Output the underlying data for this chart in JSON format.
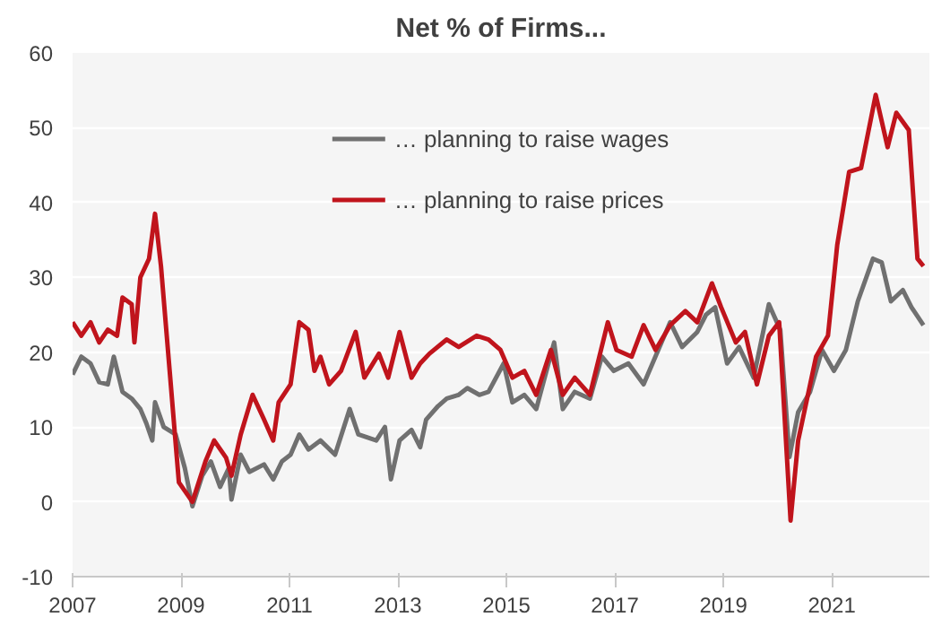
{
  "chart_data": {
    "type": "line",
    "title": "Net % of Firms...",
    "xlim": [
      2007,
      2022.8
    ],
    "xticks": [
      2007,
      2009,
      2011,
      2013,
      2015,
      2017,
      2019,
      2021
    ],
    "ylim": [
      -10,
      60
    ],
    "yticks": [
      -10,
      0,
      10,
      20,
      30,
      40,
      50,
      60
    ],
    "grid": "y",
    "legend": "top",
    "marker": "none",
    "line_style": "solid",
    "series": [
      {
        "name": "… planning to raise wages",
        "color": "#707070",
        "x": [
          2007.0,
          2007.16,
          2007.33,
          2007.49,
          2007.65,
          2007.76,
          2007.92,
          2008.09,
          2008.25,
          2008.36,
          2008.47,
          2008.52,
          2008.68,
          2008.9,
          2009.07,
          2009.21,
          2009.39,
          2009.55,
          2009.72,
          2009.88,
          2009.93,
          2010.1,
          2010.26,
          2010.53,
          2010.7,
          2010.86,
          2011.02,
          2011.18,
          2011.35,
          2011.57,
          2011.84,
          2012.11,
          2012.27,
          2012.6,
          2012.76,
          2012.87,
          2013.03,
          2013.25,
          2013.41,
          2013.52,
          2013.74,
          2013.9,
          2014.12,
          2014.28,
          2014.5,
          2014.67,
          2014.95,
          2015.11,
          2015.33,
          2015.55,
          2015.88,
          2016.04,
          2016.26,
          2016.54,
          2016.76,
          2016.98,
          2017.25,
          2017.53,
          2017.8,
          2018.02,
          2018.24,
          2018.52,
          2018.68,
          2018.85,
          2019.07,
          2019.29,
          2019.56,
          2019.84,
          2020.05,
          2020.22,
          2020.38,
          2020.6,
          2020.82,
          2021.04,
          2021.26,
          2021.48,
          2021.76,
          2021.92,
          2022.09,
          2022.31,
          2022.47,
          2022.69
        ],
        "values": [
          17,
          19.4,
          18.5,
          16,
          15.7,
          19.4,
          14.7,
          13.8,
          12.4,
          10.5,
          8.2,
          13.3,
          10,
          9,
          4.5,
          -0.6,
          3.5,
          5.4,
          2,
          4.5,
          0.3,
          6.3,
          4,
          5,
          3,
          5.4,
          6.3,
          9,
          7,
          8.2,
          6.3,
          12.4,
          9,
          8.2,
          10,
          3,
          8.2,
          9.6,
          7.3,
          11,
          12.8,
          13.8,
          14.3,
          15.2,
          14.3,
          14.7,
          18.5,
          13.3,
          14.3,
          12.4,
          21.3,
          12.4,
          14.7,
          13.8,
          19.4,
          17.5,
          18.5,
          15.7,
          20.3,
          24,
          20.7,
          22.7,
          25,
          26,
          18.5,
          20.7,
          16.6,
          26.4,
          23,
          6,
          12,
          14.7,
          20.3,
          17.5,
          20.3,
          26.8,
          32.5,
          32,
          26.8,
          28.3,
          26,
          23.6
        ]
      },
      {
        "name": "… planning to raise prices",
        "color": "#c0141c",
        "x": [
          2007.0,
          2007.16,
          2007.33,
          2007.49,
          2007.65,
          2007.82,
          2007.92,
          2008.09,
          2008.14,
          2008.25,
          2008.41,
          2008.52,
          2008.63,
          2008.79,
          2008.96,
          2009.21,
          2009.45,
          2009.61,
          2009.83,
          2009.93,
          2010.1,
          2010.32,
          2010.53,
          2010.7,
          2010.8,
          2011.02,
          2011.18,
          2011.35,
          2011.46,
          2011.57,
          2011.73,
          2011.95,
          2012.22,
          2012.38,
          2012.65,
          2012.82,
          2013.03,
          2013.25,
          2013.41,
          2013.58,
          2013.9,
          2014.12,
          2014.45,
          2014.67,
          2014.89,
          2015.11,
          2015.33,
          2015.55,
          2015.82,
          2016.04,
          2016.26,
          2016.54,
          2016.87,
          2017.03,
          2017.31,
          2017.53,
          2017.75,
          2018.02,
          2018.3,
          2018.52,
          2018.79,
          2018.96,
          2019.23,
          2019.4,
          2019.62,
          2019.84,
          2020.03,
          2020.24,
          2020.38,
          2020.71,
          2020.93,
          2021.1,
          2021.32,
          2021.54,
          2021.81,
          2022.03,
          2022.19,
          2022.42,
          2022.58,
          2022.69
        ],
        "values": [
          24,
          22.2,
          24,
          21.3,
          23,
          22.2,
          27.3,
          26.4,
          21.3,
          30,
          32.5,
          38.5,
          31.5,
          17.5,
          2.6,
          0,
          5.4,
          8.2,
          5.9,
          3.5,
          9,
          14.3,
          11,
          8.2,
          13.3,
          15.7,
          24,
          23,
          17.5,
          19.4,
          15.7,
          17.5,
          22.7,
          16.6,
          19.8,
          16.6,
          22.7,
          16.6,
          18.5,
          19.8,
          21.7,
          20.7,
          22.2,
          21.7,
          20.3,
          16.6,
          17.5,
          14.3,
          20.3,
          14.3,
          16.6,
          14.3,
          24,
          20.3,
          19.4,
          23.6,
          20.3,
          23.6,
          25.5,
          24,
          29.2,
          26,
          21.3,
          22.7,
          15.7,
          22.2,
          24,
          -2.5,
          8.2,
          19.4,
          22.2,
          34.3,
          44.1,
          44.6,
          54.4,
          47.4,
          52,
          49.7,
          32.5,
          31.5
        ]
      }
    ]
  }
}
